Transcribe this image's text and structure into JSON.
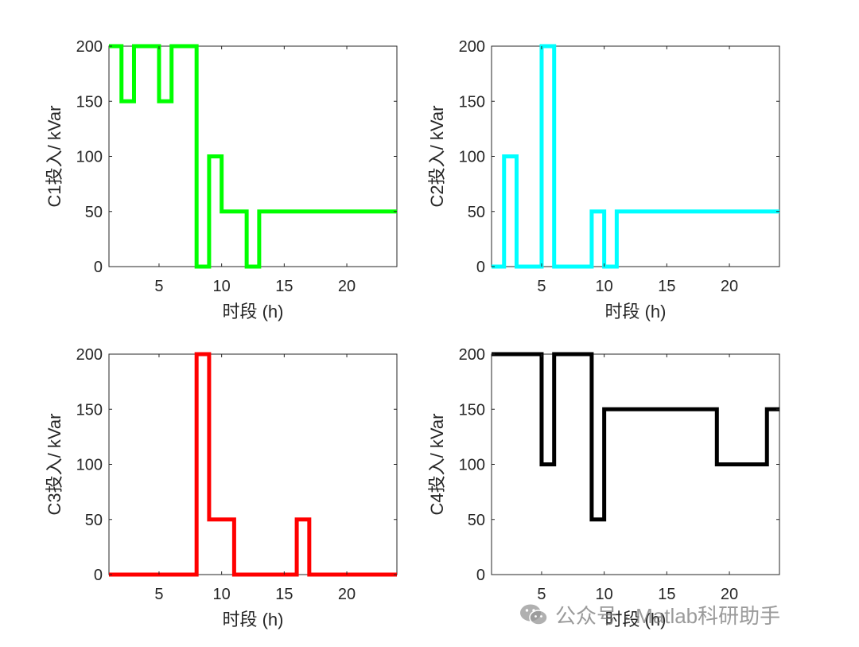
{
  "chart_data": [
    {
      "type": "line",
      "name": "C1",
      "step": true,
      "color": "#00ff00",
      "xlabel": "时段 (h)",
      "ylabel": "C1投入/ kVar",
      "xlim": [
        1,
        24
      ],
      "ylim": [
        0,
        200
      ],
      "xticks": [
        5,
        10,
        15,
        20
      ],
      "yticks": [
        0,
        50,
        100,
        150,
        200
      ],
      "x": [
        1,
        2,
        3,
        4,
        5,
        6,
        7,
        8,
        9,
        10,
        11,
        12,
        13,
        14,
        15,
        16,
        17,
        18,
        19,
        20,
        21,
        22,
        23,
        24
      ],
      "values": [
        200,
        150,
        200,
        200,
        150,
        200,
        200,
        0,
        100,
        50,
        50,
        0,
        50,
        50,
        50,
        50,
        50,
        50,
        50,
        50,
        50,
        50,
        50,
        50
      ]
    },
    {
      "type": "line",
      "name": "C2",
      "step": true,
      "color": "#00ffff",
      "xlabel": "时段 (h)",
      "ylabel": "C2投入/ kVar",
      "xlim": [
        1,
        24
      ],
      "ylim": [
        0,
        200
      ],
      "xticks": [
        5,
        10,
        15,
        20
      ],
      "yticks": [
        0,
        50,
        100,
        150,
        200
      ],
      "x": [
        1,
        2,
        3,
        4,
        5,
        6,
        7,
        8,
        9,
        10,
        11,
        12,
        13,
        14,
        15,
        16,
        17,
        18,
        19,
        20,
        21,
        22,
        23,
        24
      ],
      "values": [
        0,
        100,
        0,
        0,
        200,
        0,
        0,
        0,
        50,
        0,
        50,
        50,
        50,
        50,
        50,
        50,
        50,
        50,
        50,
        50,
        50,
        50,
        50,
        50
      ]
    },
    {
      "type": "line",
      "name": "C3",
      "step": true,
      "color": "#ff0000",
      "xlabel": "时段 (h)",
      "ylabel": "C3投入/ kVar",
      "xlim": [
        1,
        24
      ],
      "ylim": [
        0,
        200
      ],
      "xticks": [
        5,
        10,
        15,
        20
      ],
      "yticks": [
        0,
        50,
        100,
        150,
        200
      ],
      "x": [
        1,
        2,
        3,
        4,
        5,
        6,
        7,
        8,
        9,
        10,
        11,
        12,
        13,
        14,
        15,
        16,
        17,
        18,
        19,
        20,
        21,
        22,
        23,
        24
      ],
      "values": [
        0,
        0,
        0,
        0,
        0,
        0,
        0,
        200,
        50,
        50,
        0,
        0,
        0,
        0,
        0,
        50,
        0,
        0,
        0,
        0,
        0,
        0,
        0,
        0
      ]
    },
    {
      "type": "line",
      "name": "C4",
      "step": true,
      "color": "#000000",
      "xlabel": "时段 (h)",
      "ylabel": "C4投入/ kVar",
      "xlim": [
        1,
        24
      ],
      "ylim": [
        0,
        200
      ],
      "xticks": [
        5,
        10,
        15,
        20
      ],
      "yticks": [
        0,
        50,
        100,
        150,
        200
      ],
      "x": [
        1,
        2,
        3,
        4,
        5,
        6,
        7,
        8,
        9,
        10,
        11,
        12,
        13,
        14,
        15,
        16,
        17,
        18,
        19,
        20,
        21,
        22,
        23,
        24
      ],
      "values": [
        200,
        200,
        200,
        200,
        100,
        200,
        200,
        200,
        50,
        150,
        150,
        150,
        150,
        150,
        150,
        150,
        150,
        150,
        100,
        100,
        100,
        100,
        150,
        150
      ]
    }
  ],
  "watermark": {
    "text": "公众号 · Matlab科研助手",
    "icon": "wechat-icon"
  }
}
